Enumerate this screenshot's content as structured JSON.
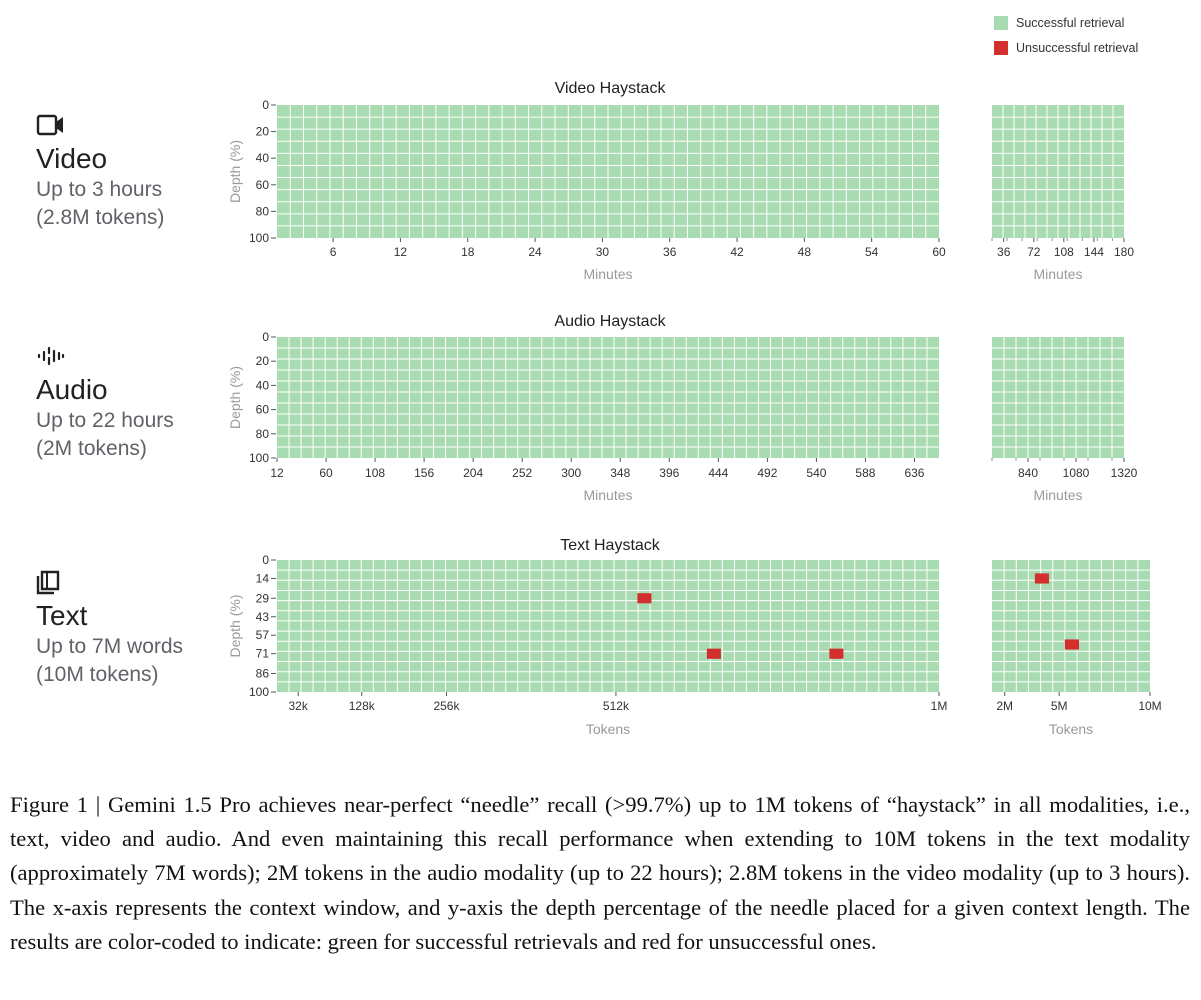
{
  "legend": {
    "success_label": "Successful retrieval",
    "fail_label": "Unsuccessful retrieval",
    "success_color": "#a8dbb1",
    "fail_color": "#d32f2f"
  },
  "modalities": [
    {
      "title": "Video",
      "subtitle": "Up to 3 hours",
      "tokens": "(2.8M tokens)",
      "icon": "video-camera-icon"
    },
    {
      "title": "Audio",
      "subtitle": "Up to 22 hours",
      "tokens": "(2M tokens)",
      "icon": "audio-waveform-icon"
    },
    {
      "title": "Text",
      "subtitle": "Up to 7M words",
      "tokens": "(10M tokens)",
      "icon": "book-icon"
    }
  ],
  "caption": "Figure 1 | Gemini 1.5 Pro achieves near-perfect “needle” recall (>99.7%) up to 1M tokens of “haystack” in all modalities, i.e., text, video and audio. And even maintaining this recall performance when extending to 10M tokens in the text modality (approximately 7M words); 2M tokens in the audio modality (up to 22 hours); 2.8M tokens in the video modality (up to 3 hours). The x-axis represents the context window, and y-axis the depth percentage of the needle placed for a given context length. The results are color-coded to indicate: green for successful retrievals and red for unsuccessful ones.",
  "chart_data": [
    {
      "type": "heatmap",
      "title": "Video Haystack",
      "ylabel": "Depth (%)",
      "yticks": [
        "0",
        "20",
        "40",
        "60",
        "80",
        "100"
      ],
      "success_rate": 1.0,
      "main": {
        "xlabel": "Minutes",
        "xticks": [
          "6",
          "12",
          "18",
          "24",
          "30",
          "36",
          "42",
          "48",
          "54",
          "60"
        ],
        "xlim": [
          1,
          60
        ],
        "grid_cols": 50,
        "grid_rows": 11,
        "failures": []
      },
      "extended": {
        "xlabel": "Minutes",
        "xticks": [
          "36",
          "72",
          "108",
          "144",
          "180"
        ],
        "xlim": [
          22,
          180
        ],
        "grid_cols": 12,
        "grid_rows": 11,
        "failures": []
      }
    },
    {
      "type": "heatmap",
      "title": "Audio Haystack",
      "ylabel": "Depth (%)",
      "yticks": [
        "0",
        "20",
        "40",
        "60",
        "80",
        "100"
      ],
      "success_rate": 1.0,
      "main": {
        "xlabel": "Minutes",
        "xticks": [
          "12",
          "60",
          "108",
          "156",
          "204",
          "252",
          "300",
          "348",
          "396",
          "444",
          "492",
          "540",
          "588",
          "636"
        ],
        "xlim": [
          12,
          660
        ],
        "grid_cols": 55,
        "grid_rows": 11,
        "failures": []
      },
      "extended": {
        "xlabel": "Minutes",
        "xticks": [
          "840",
          "1080",
          "1320"
        ],
        "xlim": [
          660,
          1320
        ],
        "grid_cols": 11,
        "grid_rows": 11,
        "failures": []
      }
    },
    {
      "type": "heatmap",
      "title": "Text Haystack",
      "ylabel": "Depth (%)",
      "yticks": [
        "0",
        "14",
        "29",
        "43",
        "57",
        "71",
        "86",
        "100"
      ],
      "main": {
        "xlabel": "Tokens",
        "xticks": [
          "32k",
          "128k",
          "256k",
          "512k",
          "1M"
        ],
        "tick_positions": [
          32,
          128,
          256,
          512,
          1000
        ],
        "xlim": [
          0,
          1000
        ],
        "grid_cols": 55,
        "grid_rows": 13,
        "failures": [
          {
            "x": 555,
            "depth": 29
          },
          {
            "x": 660,
            "depth": 71
          },
          {
            "x": 845,
            "depth": 71
          }
        ]
      },
      "extended": {
        "xlabel": "Tokens",
        "xticks": [
          "2M",
          "5M",
          "10M"
        ],
        "tick_positions": [
          2,
          5,
          10
        ],
        "xlim": [
          1.3,
          10
        ],
        "grid_cols": 13,
        "grid_rows": 13,
        "failures": [
          {
            "x": 4.05,
            "depth": 14
          },
          {
            "x": 5.7,
            "depth": 64
          }
        ]
      }
    }
  ]
}
